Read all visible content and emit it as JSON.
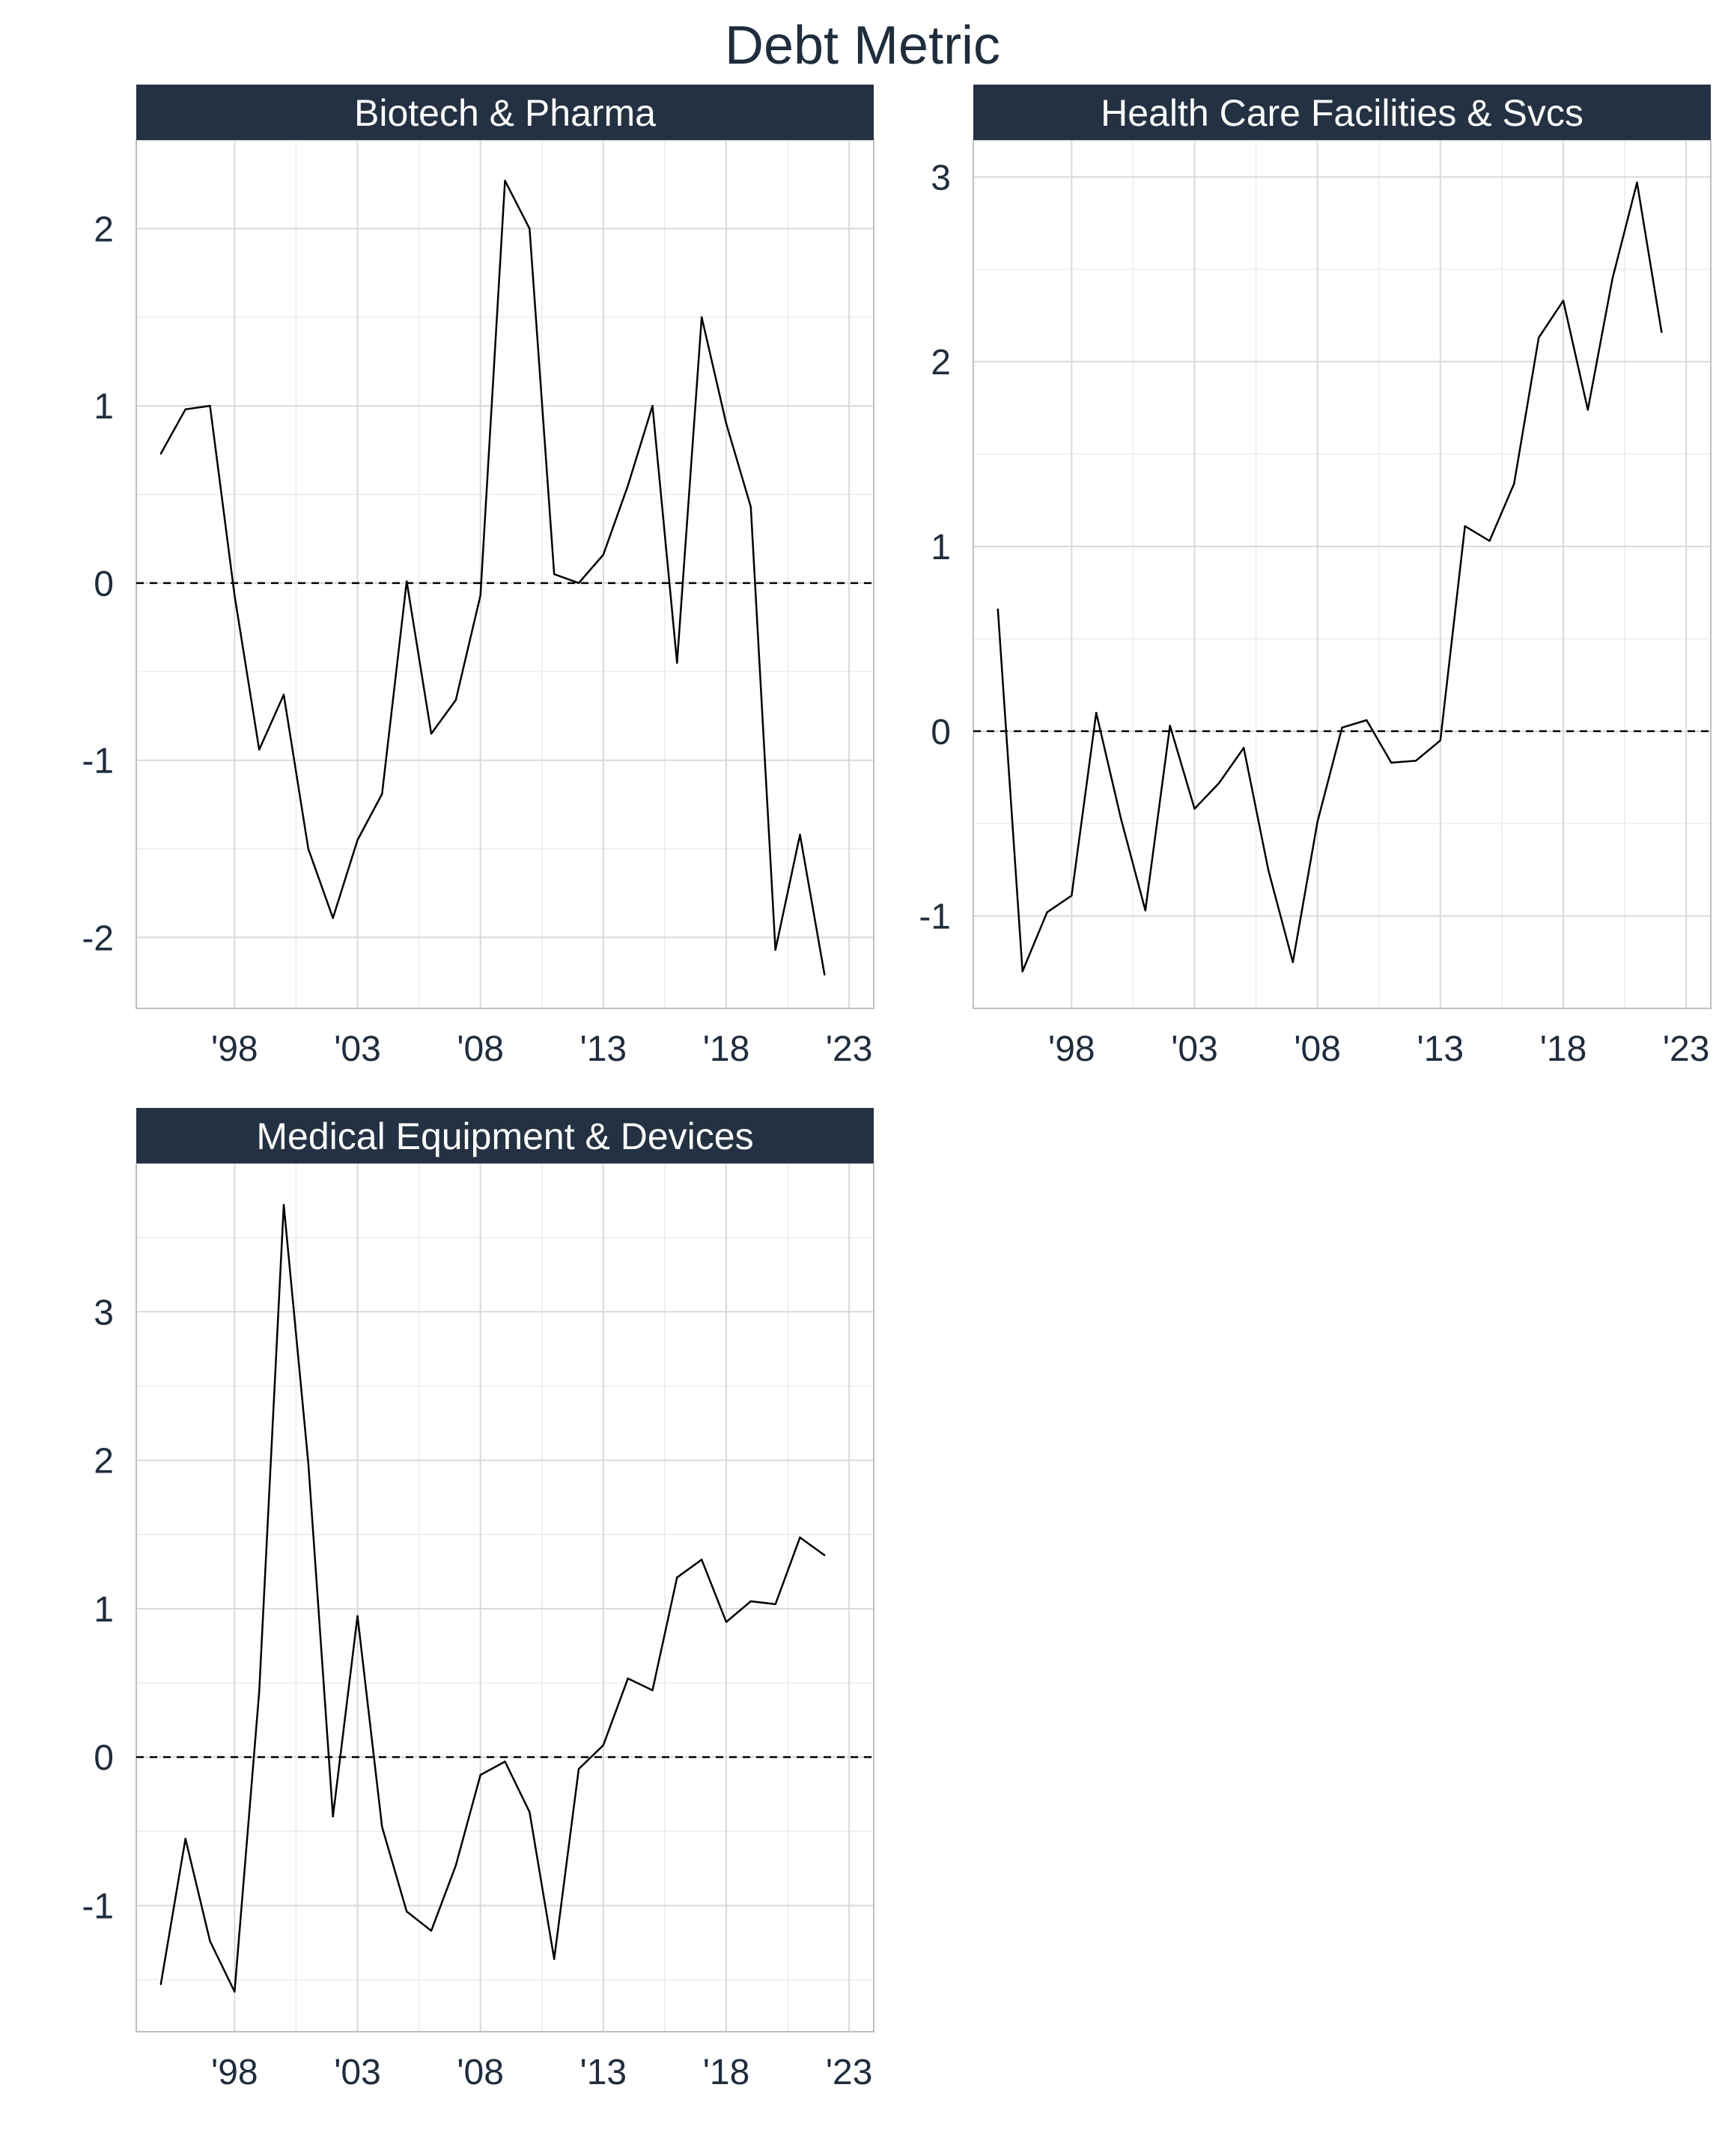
{
  "figure": {
    "title": "Debt Metric"
  },
  "colors": {
    "strip_fill": "#233142",
    "text": "#1f2d3d",
    "grid_major": "#d9d9d9",
    "grid_minor": "#ececec",
    "panel_border": "#bfbfbf",
    "line": "#000000"
  },
  "chart_data": [
    {
      "type": "line",
      "title": "Biotech & Pharma",
      "xlabel": "",
      "ylabel": "",
      "x_range": [
        1994,
        2024
      ],
      "ylim": [
        -2.4,
        2.5
      ],
      "x_ticks": [
        {
          "value": 1998,
          "label": "'98"
        },
        {
          "value": 2003,
          "label": "'03"
        },
        {
          "value": 2008,
          "label": "'08"
        },
        {
          "value": 2013,
          "label": "'13"
        },
        {
          "value": 2018,
          "label": "'18"
        },
        {
          "value": 2023,
          "label": "'23"
        }
      ],
      "y_ticks": [
        {
          "value": -2,
          "label": "-2"
        },
        {
          "value": -1,
          "label": "-1"
        },
        {
          "value": 0,
          "label": "0"
        },
        {
          "value": 1,
          "label": "1"
        },
        {
          "value": 2,
          "label": "2"
        }
      ],
      "reference_line": 0,
      "grid": true,
      "x": [
        1995,
        1996,
        1997,
        1998,
        1999,
        2000,
        2001,
        2002,
        2003,
        2004,
        2005,
        2006,
        2007,
        2008,
        2009,
        2010,
        2011,
        2012,
        2013,
        2014,
        2015,
        2016,
        2017,
        2018,
        2019,
        2020,
        2021,
        2022
      ],
      "values": [
        0.73,
        0.98,
        1.0,
        -0.07,
        -0.94,
        -0.63,
        -1.5,
        -1.89,
        -1.45,
        -1.19,
        0.01,
        -0.85,
        -0.66,
        -0.07,
        2.27,
        2.0,
        0.05,
        0.0,
        0.16,
        0.55,
        1.0,
        -0.45,
        1.5,
        0.9,
        0.43,
        -2.07,
        -1.42,
        -2.21
      ]
    },
    {
      "type": "line",
      "title": "Health Care Facilities & Svcs",
      "xlabel": "",
      "ylabel": "",
      "x_range": [
        1994,
        2024
      ],
      "ylim": [
        -1.5,
        3.2
      ],
      "x_ticks": [
        {
          "value": 1998,
          "label": "'98"
        },
        {
          "value": 2003,
          "label": "'03"
        },
        {
          "value": 2008,
          "label": "'08"
        },
        {
          "value": 2013,
          "label": "'13"
        },
        {
          "value": 2018,
          "label": "'18"
        },
        {
          "value": 2023,
          "label": "'23"
        }
      ],
      "y_ticks": [
        {
          "value": -1,
          "label": "-1"
        },
        {
          "value": 0,
          "label": "0"
        },
        {
          "value": 1,
          "label": "1"
        },
        {
          "value": 2,
          "label": "2"
        },
        {
          "value": 3,
          "label": "3"
        }
      ],
      "reference_line": 0,
      "grid": true,
      "x": [
        1995,
        1996,
        1997,
        1998,
        1999,
        2000,
        2001,
        2002,
        2003,
        2004,
        2005,
        2006,
        2007,
        2008,
        2009,
        2010,
        2011,
        2012,
        2013,
        2014,
        2015,
        2016,
        2017,
        2018,
        2019,
        2020,
        2021,
        2022
      ],
      "values": [
        0.66,
        -1.3,
        -0.98,
        -0.89,
        0.1,
        -0.47,
        -0.97,
        0.03,
        -0.42,
        -0.28,
        -0.09,
        -0.75,
        -1.25,
        -0.49,
        0.02,
        0.06,
        -0.17,
        -0.16,
        -0.05,
        1.11,
        1.03,
        1.34,
        2.13,
        2.33,
        1.74,
        2.45,
        2.97,
        2.16
      ]
    },
    {
      "type": "line",
      "title": "Medical Equipment & Devices",
      "xlabel": "",
      "ylabel": "",
      "x_range": [
        1994,
        2024
      ],
      "ylim": [
        -1.85,
        4.0
      ],
      "x_ticks": [
        {
          "value": 1998,
          "label": "'98"
        },
        {
          "value": 2003,
          "label": "'03"
        },
        {
          "value": 2008,
          "label": "'08"
        },
        {
          "value": 2013,
          "label": "'13"
        },
        {
          "value": 2018,
          "label": "'18"
        },
        {
          "value": 2023,
          "label": "'23"
        }
      ],
      "y_ticks": [
        {
          "value": -1,
          "label": "-1"
        },
        {
          "value": 0,
          "label": "0"
        },
        {
          "value": 1,
          "label": "1"
        },
        {
          "value": 2,
          "label": "2"
        },
        {
          "value": 3,
          "label": "3"
        }
      ],
      "reference_line": 0,
      "grid": true,
      "x": [
        1995,
        1996,
        1997,
        1998,
        1999,
        2000,
        2001,
        2002,
        2003,
        2004,
        2005,
        2006,
        2007,
        2008,
        2009,
        2010,
        2011,
        2012,
        2013,
        2014,
        2015,
        2016,
        2017,
        2018,
        2019,
        2020,
        2021,
        2022
      ],
      "values": [
        -1.53,
        -0.55,
        -1.24,
        -1.58,
        0.44,
        3.72,
        1.98,
        -0.4,
        0.95,
        -0.47,
        -1.04,
        -1.17,
        -0.73,
        -0.12,
        -0.03,
        -0.37,
        -1.36,
        -0.08,
        0.08,
        0.53,
        0.45,
        1.21,
        1.33,
        0.91,
        1.05,
        1.03,
        1.48,
        1.36
      ]
    }
  ]
}
